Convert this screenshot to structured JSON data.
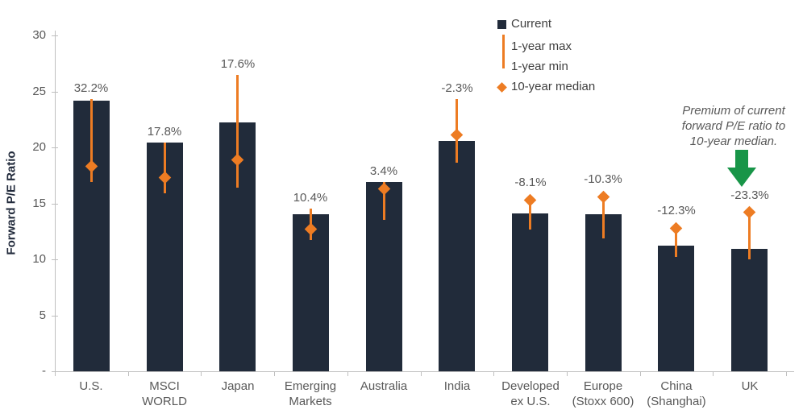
{
  "chart_data": {
    "type": "bar",
    "title": "",
    "ylabel": "Forward P/E Ratio",
    "ylim": [
      0,
      30
    ],
    "grid": false,
    "legend_position": "top-right",
    "ytick_values": [
      0,
      5,
      10,
      15,
      20,
      25,
      30
    ],
    "ytick_labels": [
      "-",
      "5",
      "10",
      "15",
      "20",
      "25",
      "30"
    ],
    "categories": [
      [
        "U.S."
      ],
      [
        "MSCI",
        "WORLD"
      ],
      [
        "Japan"
      ],
      [
        "Emerging",
        "Markets"
      ],
      [
        "Australia"
      ],
      [
        "India"
      ],
      [
        "Developed",
        "ex U.S."
      ],
      [
        "Europe",
        "(Stoxx 600)"
      ],
      [
        "China",
        "(Shanghai)"
      ],
      [
        "UK"
      ]
    ],
    "series": [
      {
        "name": "Current",
        "type": "bar",
        "values": [
          24.2,
          20.4,
          22.2,
          14.0,
          16.9,
          20.6,
          14.1,
          14.0,
          11.2,
          10.9
        ]
      },
      {
        "name": "1-year max",
        "type": "whisker-max",
        "values": [
          24.3,
          20.4,
          26.5,
          14.5,
          16.9,
          24.3,
          15.4,
          15.7,
          12.8,
          14.2
        ]
      },
      {
        "name": "1-year min",
        "type": "whisker-min",
        "values": [
          16.9,
          15.9,
          16.4,
          11.7,
          13.5,
          18.6,
          12.7,
          11.9,
          10.2,
          10.0
        ]
      },
      {
        "name": "10-year median",
        "type": "diamond",
        "values": [
          18.3,
          17.3,
          18.9,
          12.7,
          16.3,
          21.1,
          15.3,
          15.6,
          12.8,
          14.2
        ]
      }
    ],
    "point_labels": [
      "32.2%",
      "17.8%",
      "17.6%",
      "10.4%",
      "3.4%",
      "-2.3%",
      "-8.1%",
      "-10.3%",
      "-12.3%",
      "-23.3%"
    ],
    "legend": [
      "Current",
      "1-year max",
      "1-year min",
      "10-year median"
    ]
  },
  "annotation": {
    "lines": [
      "Premium of current",
      "forward P/E ratio to",
      "10-year median."
    ]
  },
  "colors": {
    "bar_navy": "#212B3A",
    "accent_orange": "#ED7C23",
    "arrow_green": "#189548",
    "label_gray": "#595959",
    "legend_text": "#3F3F3F",
    "axis_line": "#BFBFBF",
    "navy_text": "#222B3C"
  }
}
